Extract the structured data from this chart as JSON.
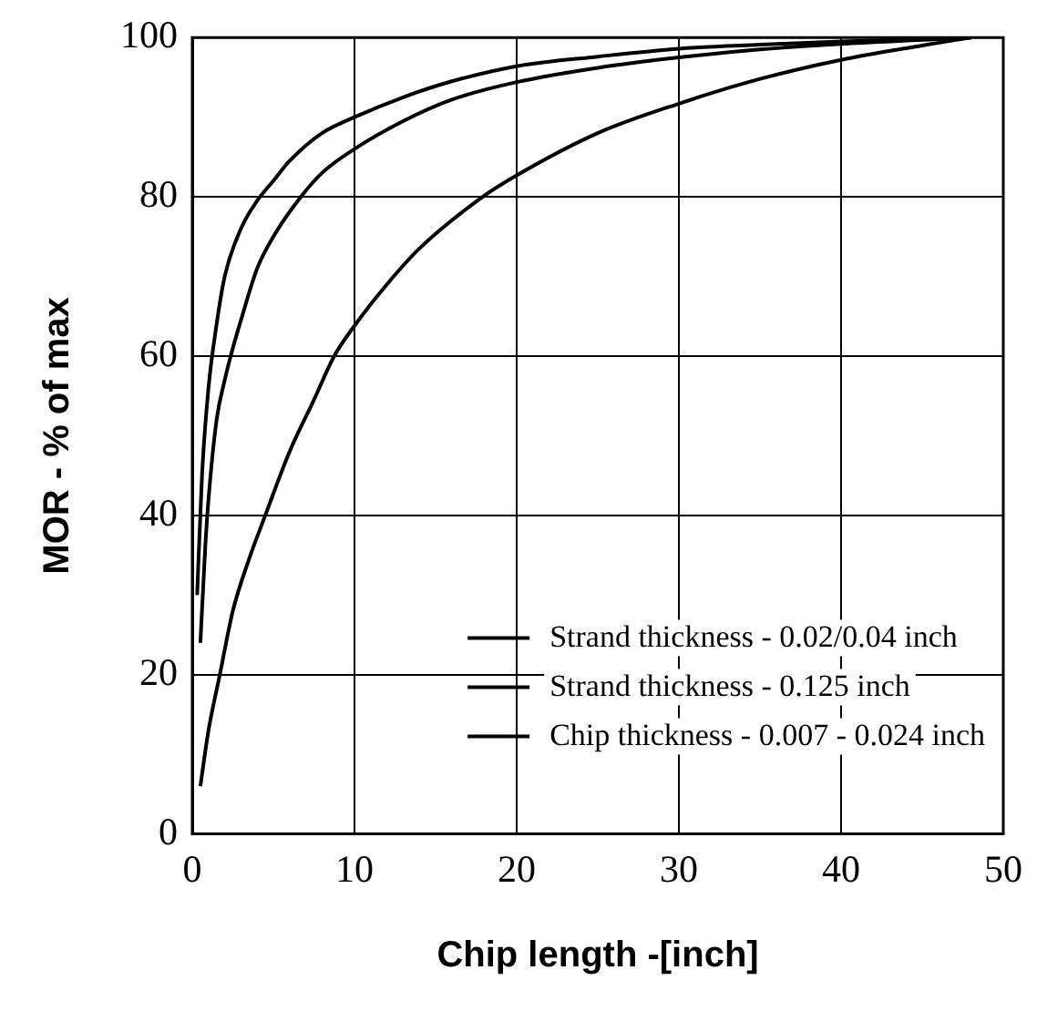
{
  "chart_data": {
    "type": "line",
    "xlabel": "Chip length -[inch]",
    "ylabel": "MOR - % of max",
    "xlim": [
      0,
      50
    ],
    "ylim": [
      0,
      100
    ],
    "xticks": [
      0,
      10,
      20,
      30,
      40,
      50
    ],
    "yticks": [
      0,
      20,
      40,
      60,
      80,
      100
    ],
    "grid": true,
    "legend": "bottom right",
    "marker": "none",
    "line_style": "solid",
    "series": [
      {
        "name": "Strand thickness - 0.02/0.04 inch",
        "color": "#000000",
        "x": [
          0.3,
          0.6,
          1,
          1.5,
          2,
          3,
          4,
          5,
          6,
          8,
          10,
          13,
          16,
          20,
          25,
          30,
          35,
          40,
          45,
          48
        ],
        "values": [
          30,
          45,
          56,
          64,
          70,
          76,
          79.5,
          82,
          84.5,
          88,
          90,
          92.5,
          94.5,
          96.4,
          97.6,
          98.6,
          99.1,
          99.5,
          99.8,
          100
        ]
      },
      {
        "name": "Strand thickness - 0.125 inch",
        "color": "#000000",
        "x": [
          0.5,
          0.8,
          1,
          1.5,
          2,
          2.5,
          3,
          4,
          5,
          6.7,
          8,
          10,
          13,
          16,
          20,
          25,
          30,
          35,
          40,
          45,
          48
        ],
        "values": [
          24,
          36,
          42,
          52,
          57,
          61,
          64.5,
          71,
          75,
          80,
          83,
          86,
          89.5,
          92.2,
          94.4,
          96.2,
          97.5,
          98.5,
          99.2,
          99.7,
          100
        ]
      },
      {
        "name": "Chip thickness - 0.007 - 0.024 inch",
        "color": "#000000",
        "x": [
          0.5,
          1,
          1.7,
          2.5,
          3.5,
          4.5,
          6,
          7.5,
          8.75,
          10,
          12,
          14,
          17.9,
          20,
          25,
          30,
          35,
          40,
          45,
          48
        ],
        "values": [
          6,
          13,
          20,
          28,
          34.5,
          40,
          48,
          54.5,
          60,
          63.8,
          69,
          73.5,
          80,
          82.7,
          88,
          91.7,
          94.8,
          97.2,
          99,
          100
        ]
      }
    ]
  }
}
